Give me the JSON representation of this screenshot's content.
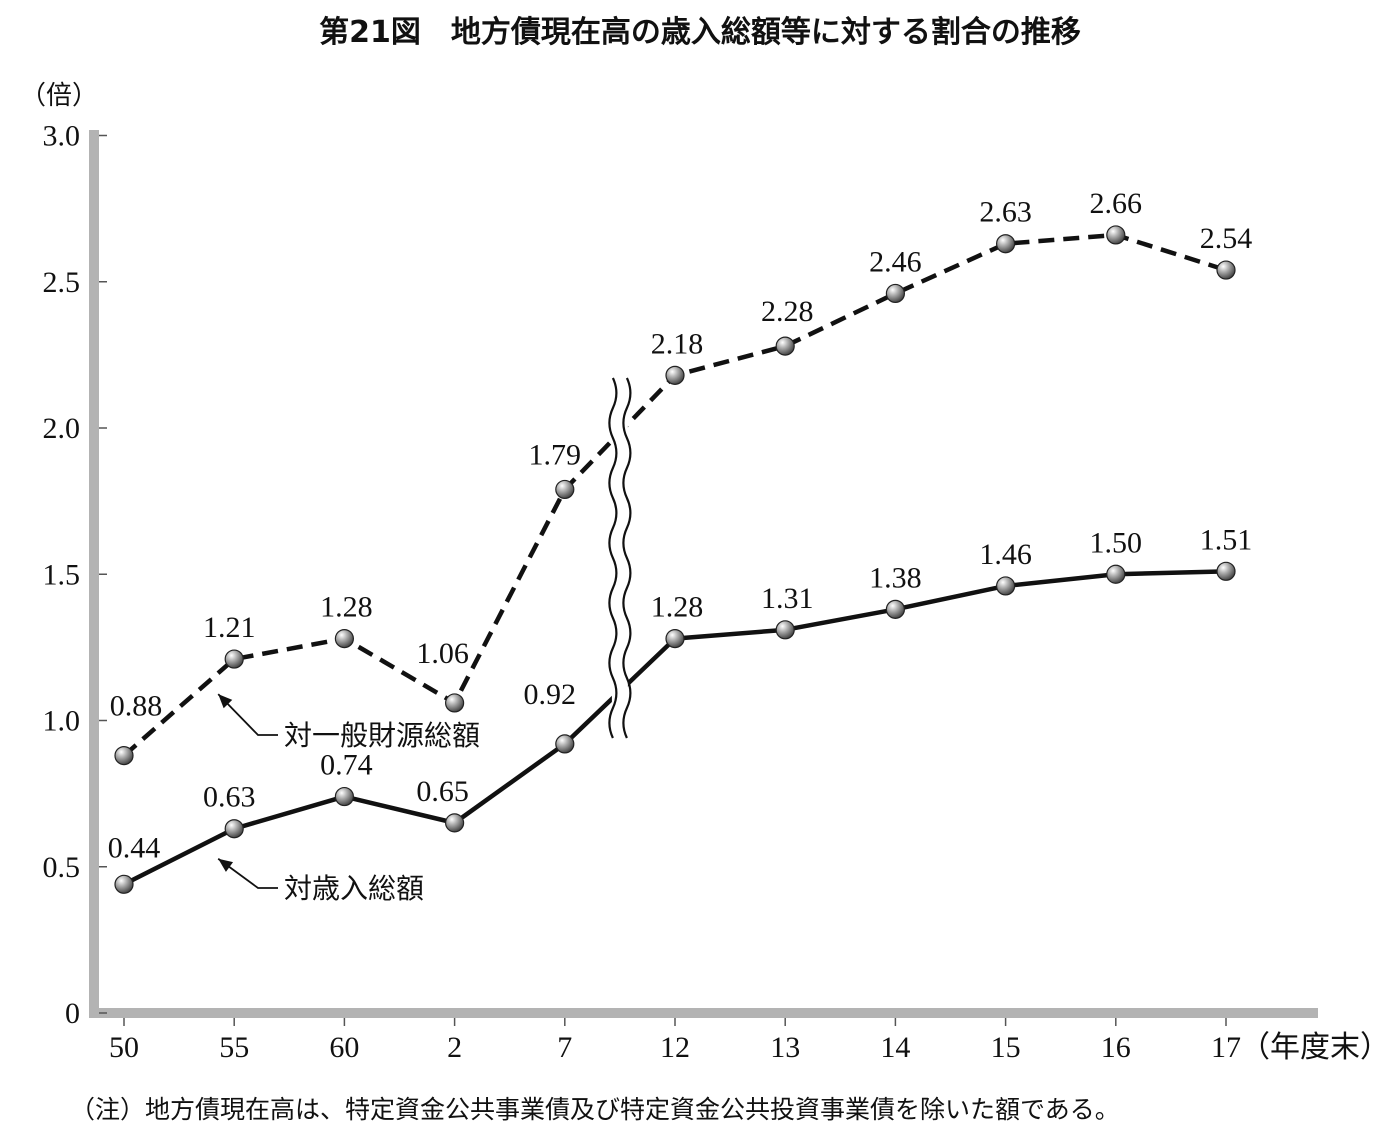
{
  "chart_data": {
    "type": "line",
    "title": "第21図　地方債現在高の歳入総額等に対する割合の推移",
    "ylabel": "（倍）",
    "xlabel": "（年度末）",
    "ylim": [
      0,
      3.0
    ],
    "yticks": [
      "0",
      "0.5",
      "1.0",
      "1.5",
      "2.0",
      "2.5",
      "3.0"
    ],
    "categories": [
      "50",
      "55",
      "60",
      "2",
      "7",
      "12",
      "13",
      "14",
      "15",
      "16",
      "17"
    ],
    "axis_break": "between 7 and 12",
    "series": [
      {
        "name": "対一般財源総額",
        "line_style": "dashed",
        "values": [
          0.88,
          1.21,
          1.28,
          1.06,
          1.79,
          2.18,
          2.28,
          2.46,
          2.63,
          2.66,
          2.54
        ],
        "labels": [
          "0.88",
          "1.21",
          "1.28",
          "1.06",
          "1.79",
          "2.18",
          "2.28",
          "2.46",
          "2.63",
          "2.66",
          "2.54"
        ]
      },
      {
        "name": "対歳入総額",
        "line_style": "solid",
        "values": [
          0.44,
          0.63,
          0.74,
          0.65,
          0.92,
          1.28,
          1.31,
          1.38,
          1.46,
          1.5,
          1.51
        ],
        "labels": [
          "0.44",
          "0.63",
          "0.74",
          "0.65",
          "0.92",
          "1.28",
          "1.31",
          "1.38",
          "1.46",
          "1.50",
          "1.51"
        ]
      }
    ],
    "note": "（注）地方債現在高は、特定資金公共事業債及び特定資金公共投資事業債を除いた額である。",
    "colors": {
      "axis": "#b3b3b3",
      "line": "#111111",
      "marker": "#8a8a8a"
    }
  }
}
